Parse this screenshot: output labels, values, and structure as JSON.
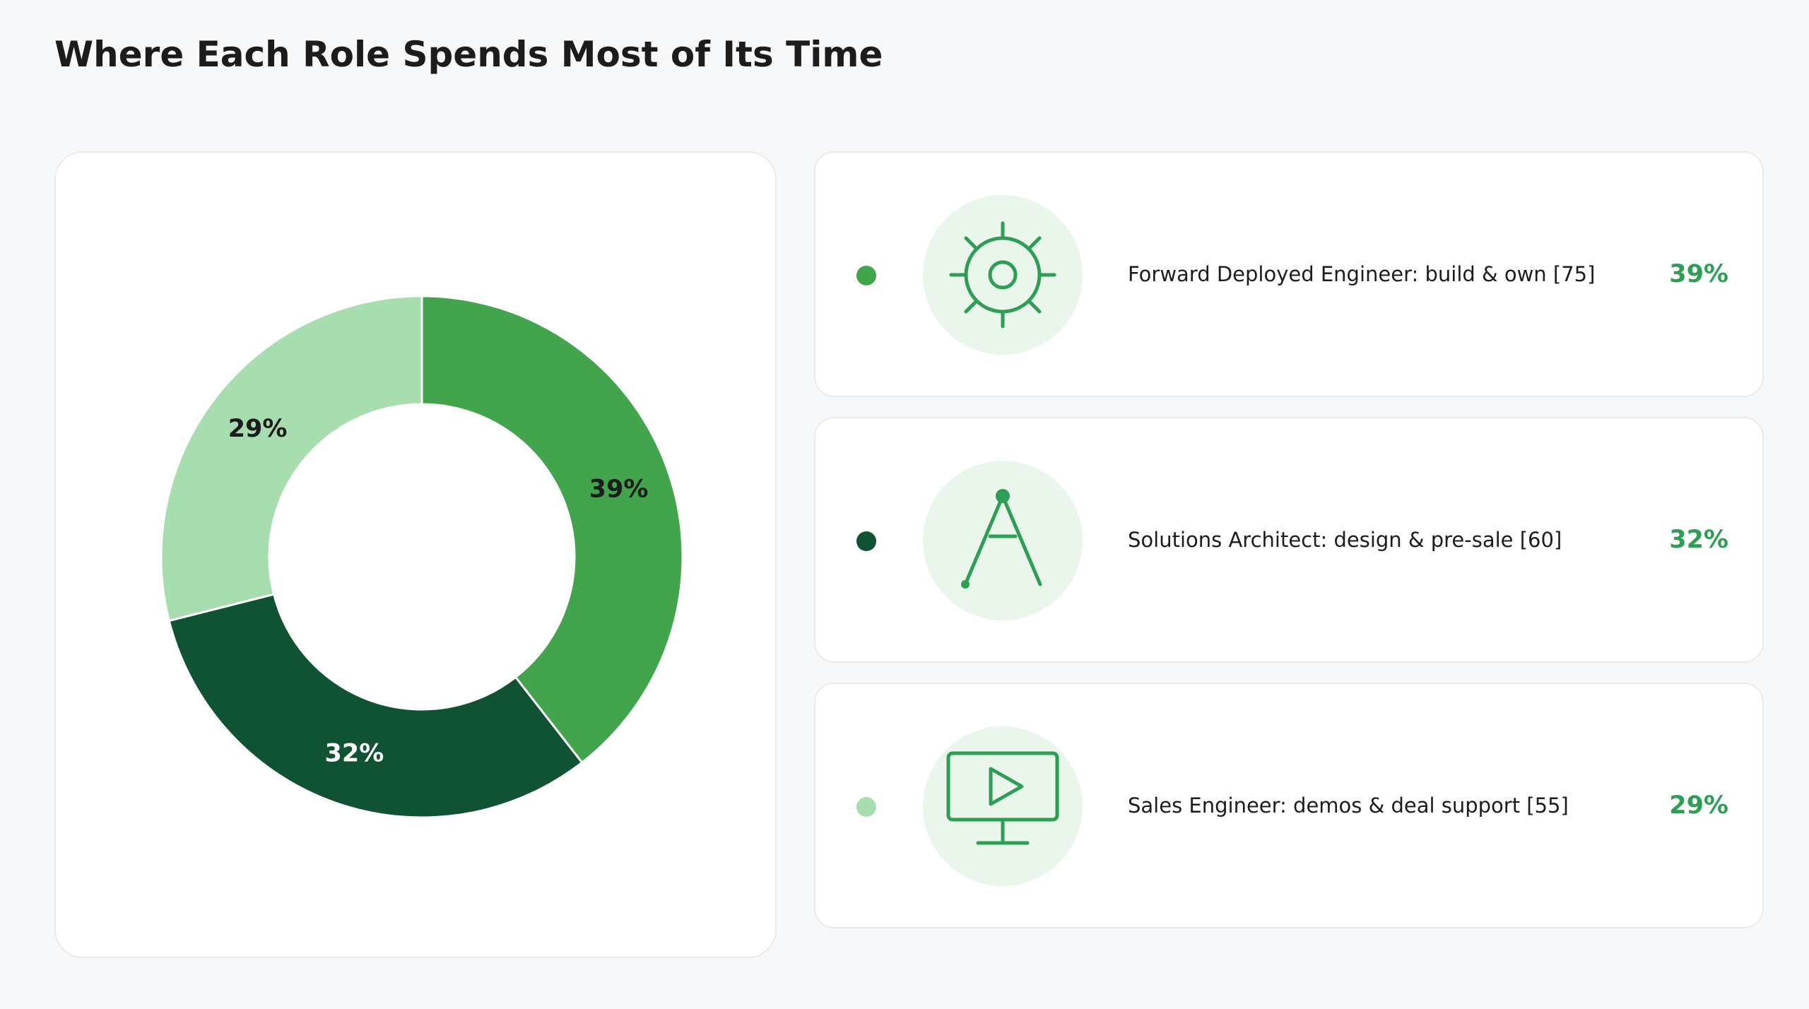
{
  "title": "Where Each Role Spends Most of Its Time",
  "chart_data": {
    "type": "pie",
    "variant": "donut",
    "title": "Where Each Role Spends Most of Its Time",
    "slices": [
      {
        "label": "Forward Deployed Engineer: build & own",
        "value": 75,
        "percent_label": "39%",
        "color": "#42a44d",
        "label_color": "#1c1c1c"
      },
      {
        "label": "Solutions Architect: design & pre-sale",
        "value": 60,
        "percent_label": "32%",
        "color": "#105234",
        "label_color": "#ffffff"
      },
      {
        "label": "Sales Engineer: demos & deal support",
        "value": 55,
        "percent_label": "29%",
        "color": "#a8ddb0",
        "label_color": "#1c1c1c"
      }
    ]
  },
  "legend": [
    {
      "label": "Forward Deployed Engineer: build & own [75]",
      "percent": "39%",
      "color": "#42a44d",
      "icon": "gear-icon"
    },
    {
      "label": "Solutions Architect: design & pre-sale [60]",
      "percent": "32%",
      "color": "#105234",
      "icon": "compass-icon"
    },
    {
      "label": "Sales Engineer: demos & deal support [55]",
      "percent": "29%",
      "color": "#a8ddb0",
      "icon": "monitor-play-icon"
    }
  ],
  "icon_color": "#2e9e55"
}
